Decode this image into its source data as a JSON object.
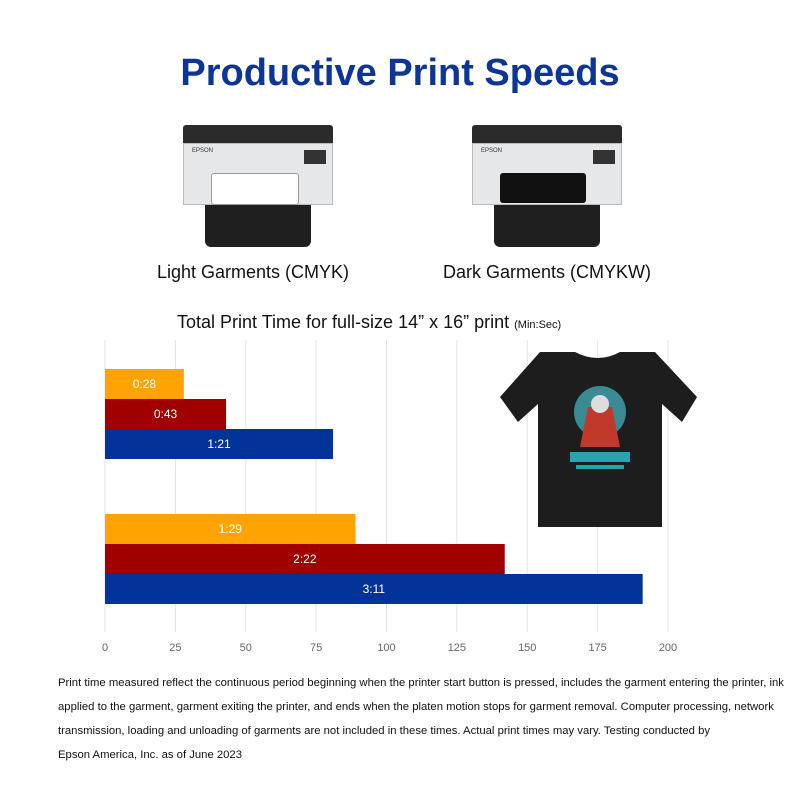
{
  "header": {
    "title": "Productive Print Speeds"
  },
  "printers": [
    {
      "caption": "Light Garments (CMYK)",
      "brand": "EPSON",
      "garment_color": "#ffffff"
    },
    {
      "caption": "Dark Garments (CMYKW)",
      "brand": "EPSON",
      "garment_color": "#111111"
    }
  ],
  "chart_data": {
    "type": "bar",
    "orientation": "horizontal",
    "title": "Total Print Time for full-size 14” x 16” print",
    "title_unit": "(Min:Sec)",
    "xlim": [
      0,
      200
    ],
    "xticks": [
      "0",
      "25",
      "50",
      "75",
      "100",
      "125",
      "150",
      "175",
      "200"
    ],
    "grid": true,
    "groups": [
      {
        "bars": [
          {
            "value": 28,
            "label": "0:28",
            "color": "#ffa300"
          },
          {
            "value": 43,
            "label": "0:43",
            "color": "#a00000"
          },
          {
            "value": 81,
            "label": "1:21",
            "color": "#023399"
          }
        ]
      },
      {
        "bars": [
          {
            "value": 89,
            "label": "1:29",
            "color": "#ffa300"
          },
          {
            "value": 142,
            "label": "2:22",
            "color": "#a00000"
          },
          {
            "value": 191,
            "label": "3:11",
            "color": "#023399"
          }
        ]
      }
    ]
  },
  "footnote": {
    "lines": [
      "Print time measured reflect the continuous period beginning when the printer start button is pressed, includes the garment entering the printer, ink",
      "applied to the garment, garment exiting the printer, and ends when the platen motion stops for garment removal. Computer processing, network",
      "transmission, loading and unloading of garments are not included in these times. Actual print times may vary. Testing conducted by",
      "Epson America, Inc. as of June 2023"
    ]
  }
}
